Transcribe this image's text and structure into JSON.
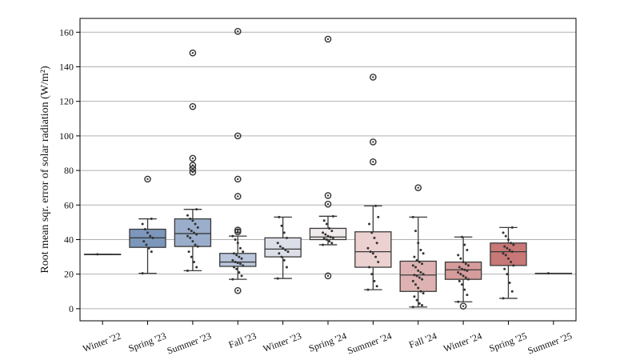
{
  "chart_data": {
    "type": "box",
    "ylabel": "Root mean sqr. error of solar radiation (W/m²)",
    "ylim": [
      -7,
      168
    ],
    "yticks": [
      0,
      20,
      40,
      60,
      80,
      100,
      120,
      140,
      160
    ],
    "grid": "horizontal",
    "categories": [
      "Winter '22",
      "Spring '23",
      "Summer '23",
      "Fall '23",
      "Winter '23",
      "Spring '24",
      "Summer '24",
      "Fall '24",
      "Winter '24",
      "Spring '25",
      "Summer '25"
    ],
    "colors": [
      "#6683a8",
      "#7c97bb",
      "#9aaecb",
      "#b9c6dc",
      "#dcdfe8",
      "#f1eaea",
      "#ecd1d1",
      "#deb2b2",
      "#d59c9b",
      "#c87876",
      "#b45a58"
    ],
    "boxes": [
      {
        "q1": 31.5,
        "median": 31.5,
        "q3": 31.5,
        "whisker_low": 31.5,
        "whisker_high": 31.5,
        "outliers": [],
        "points": [
          31.5
        ]
      },
      {
        "q1": 35.5,
        "median": 41,
        "q3": 46,
        "whisker_low": 20.5,
        "whisker_high": 52,
        "outliers": [
          75
        ],
        "points": [
          20.5,
          33,
          35,
          37,
          39,
          41,
          42,
          44,
          46,
          49,
          52
        ]
      },
      {
        "q1": 36,
        "median": 43.5,
        "q3": 52,
        "whisker_low": 22,
        "whisker_high": 57.5,
        "outliers": [
          79,
          81,
          83,
          87,
          117,
          148
        ],
        "points": [
          22,
          24,
          27,
          30,
          33,
          36,
          37,
          39,
          41,
          42,
          43,
          44,
          45,
          46,
          47,
          49,
          51,
          52,
          54,
          57.5
        ]
      },
      {
        "q1": 24.5,
        "median": 27,
        "q3": 32,
        "whisker_low": 17,
        "whisker_high": 42,
        "outliers": [
          10.5,
          44.5,
          45.5,
          65,
          75,
          100,
          160.5
        ],
        "points": [
          17,
          19,
          21,
          23,
          24,
          25,
          26,
          26.5,
          27,
          28,
          29,
          30,
          31,
          32,
          33,
          35,
          38,
          40,
          42
        ]
      },
      {
        "q1": 30,
        "median": 34.5,
        "q3": 41,
        "whisker_low": 17.5,
        "whisker_high": 53,
        "outliers": [],
        "points": [
          17.5,
          24,
          28,
          30,
          32,
          33,
          34,
          35,
          36,
          38,
          41,
          44,
          48,
          53
        ]
      },
      {
        "q1": 40,
        "median": 41.5,
        "q3": 46.5,
        "whisker_low": 37,
        "whisker_high": 53.5,
        "outliers": [
          19,
          60.5,
          65.5,
          156
        ],
        "points": [
          37,
          38,
          39,
          40,
          40.5,
          41,
          41.5,
          42,
          43,
          44,
          45,
          46.5,
          49,
          51,
          53.5
        ]
      },
      {
        "q1": 24,
        "median": 33,
        "q3": 44.5,
        "whisker_low": 11,
        "whisker_high": 59.5,
        "outliers": [
          85,
          96.5,
          134
        ],
        "points": [
          11,
          13,
          16,
          20,
          24,
          27,
          30,
          32,
          33,
          35,
          38,
          41,
          44,
          49,
          53,
          59.5
        ]
      },
      {
        "q1": 10,
        "median": 19.5,
        "q3": 27.5,
        "whisker_low": 1,
        "whisker_high": 53,
        "outliers": [
          70
        ],
        "points": [
          1,
          2,
          3,
          5,
          7,
          9,
          10,
          12,
          14,
          16,
          17,
          18,
          19,
          19.5,
          20,
          21,
          22,
          24,
          25,
          26,
          27,
          28,
          30,
          32,
          34,
          38,
          45,
          53
        ]
      },
      {
        "q1": 17,
        "median": 22.5,
        "q3": 27,
        "whisker_low": 4,
        "whisker_high": 41.5,
        "outliers": [
          1.5
        ],
        "points": [
          4,
          8,
          11,
          14,
          16,
          17,
          18,
          19,
          20,
          21,
          22,
          22.5,
          23,
          24,
          25,
          26,
          27,
          29,
          31,
          34,
          37,
          41.5
        ]
      },
      {
        "q1": 25,
        "median": 33,
        "q3": 38,
        "whisker_low": 6,
        "whisker_high": 47,
        "outliers": [],
        "points": [
          6,
          10,
          15,
          20,
          23,
          25,
          27,
          29,
          31,
          32,
          33,
          34,
          35,
          36,
          37,
          38,
          40,
          42,
          44,
          47
        ]
      },
      {
        "q1": 20.5,
        "median": 20.5,
        "q3": 20.5,
        "whisker_low": 20.5,
        "whisker_high": 20.5,
        "outliers": [],
        "points": [
          20.5
        ]
      }
    ]
  }
}
